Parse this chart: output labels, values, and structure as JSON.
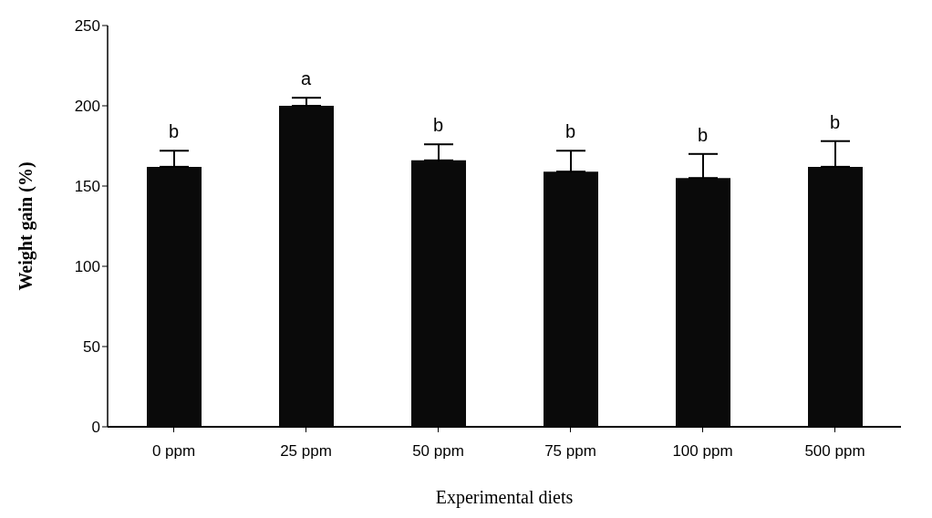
{
  "chart_data": {
    "type": "bar",
    "xlabel": "Experimental diets",
    "ylabel": "Weight gain (%)",
    "categories": [
      "0 ppm",
      "25 ppm",
      "50 ppm",
      "75 ppm",
      "100 ppm",
      "500 ppm"
    ],
    "values": [
      162,
      200,
      166,
      159,
      155,
      162
    ],
    "errors": [
      10,
      5,
      10,
      13,
      15,
      16
    ],
    "color": "#0a0a0a",
    "ylim": [
      0,
      250
    ],
    "yticks": [
      0,
      50,
      100,
      150,
      200,
      250
    ],
    "grid": false,
    "legend": false,
    "annotations": [
      {
        "text": "b",
        "x": "0 ppm",
        "y": 172
      },
      {
        "text": "a",
        "x": "25 ppm",
        "y": 205
      },
      {
        "text": "b",
        "x": "50 ppm",
        "y": 176
      },
      {
        "text": "b",
        "x": "75 ppm",
        "y": 172
      },
      {
        "text": "b",
        "x": "100 ppm",
        "y": 170
      },
      {
        "text": "b",
        "x": "500 ppm",
        "y": 178
      }
    ]
  }
}
